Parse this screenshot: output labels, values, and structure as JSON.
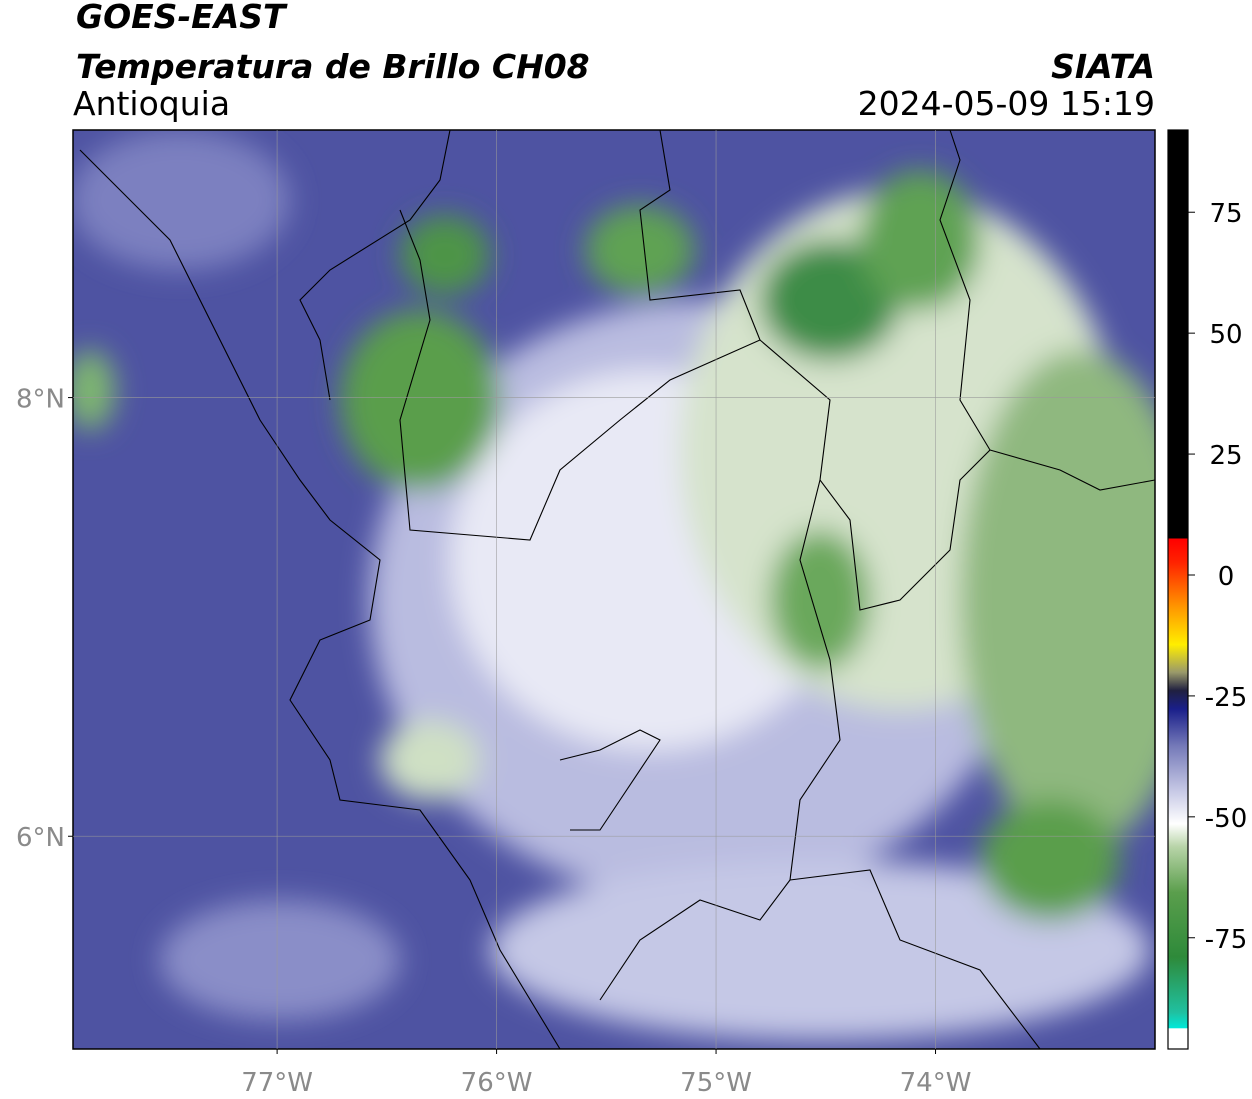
{
  "header": {
    "title": "GOES-EAST",
    "subtitle": "Temperatura de Brillo CH08",
    "region": "Antioquia",
    "source": "SIATA",
    "datetime": "2024-05-09 15:19"
  },
  "map": {
    "xlim": [
      -77.93,
      -73.0
    ],
    "ylim": [
      5.03,
      9.22
    ],
    "xticks": [
      {
        "value": -77,
        "label": "77°W"
      },
      {
        "value": -76,
        "label": "76°W"
      },
      {
        "value": -75,
        "label": "75°W"
      },
      {
        "value": -74,
        "label": "74°W"
      }
    ],
    "yticks": [
      {
        "value": 8,
        "label": "8°N"
      },
      {
        "value": 6,
        "label": "6°N"
      }
    ],
    "grid": true
  },
  "colorbar": {
    "lim": [
      -98,
      92
    ],
    "ticks": [
      75,
      50,
      25,
      0,
      -25,
      -50,
      -75
    ]
  }
}
